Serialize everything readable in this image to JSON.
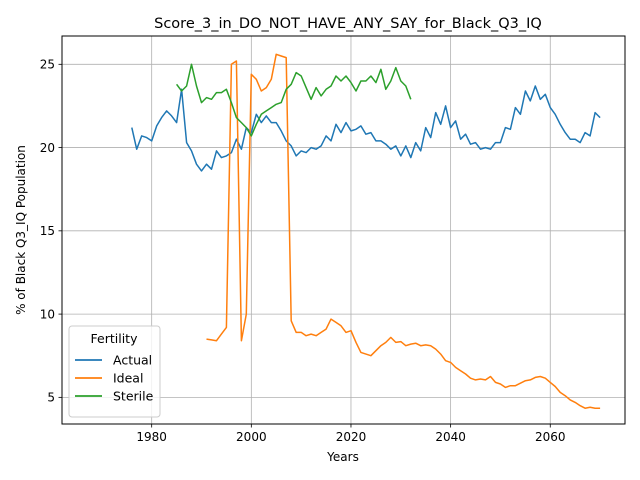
{
  "chart_data": {
    "type": "line",
    "title": "Score_3_in_DO_NOT_HAVE_ANY_SAY_for_Black_Q3_IQ",
    "xlabel": "Years",
    "ylabel": "% of Black Q3_IQ Population",
    "xlim": [
      1962,
      2075
    ],
    "ylim": [
      3.4,
      26.7
    ],
    "xticks": [
      1980,
      2000,
      2020,
      2040,
      2060
    ],
    "yticks": [
      5,
      10,
      15,
      20,
      25
    ],
    "grid": true,
    "legend": {
      "title": "Fertility",
      "placement": "lower-left"
    },
    "series": [
      {
        "name": "Actual",
        "color": "#1f77b4",
        "x": [
          1976,
          1977,
          1978,
          1979,
          1980,
          1981,
          1982,
          1983,
          1984,
          1985,
          1986,
          1987,
          1988,
          1989,
          1990,
          1991,
          1992,
          1993,
          1994,
          1995,
          1996,
          1997,
          1998,
          1999,
          2000,
          2001,
          2002,
          2003,
          2004,
          2005,
          2006,
          2007,
          2008,
          2009,
          2010,
          2011,
          2012,
          2013,
          2014,
          2015,
          2016,
          2017,
          2018,
          2019,
          2020,
          2021,
          2022,
          2023,
          2024,
          2025,
          2026,
          2027,
          2028,
          2029,
          2030,
          2031,
          2032,
          2033,
          2034,
          2035,
          2036,
          2037,
          2038,
          2039,
          2040,
          2041,
          2042,
          2043,
          2044,
          2045,
          2046,
          2047,
          2048,
          2049,
          2050,
          2051,
          2052,
          2053,
          2054,
          2055,
          2056,
          2057,
          2058,
          2059,
          2060,
          2061,
          2062,
          2063,
          2064,
          2065,
          2066,
          2067,
          2068,
          2069,
          2070
        ],
        "y": [
          21.2,
          19.9,
          20.7,
          20.6,
          20.4,
          21.3,
          21.8,
          22.2,
          21.9,
          21.5,
          23.5,
          20.3,
          19.8,
          19.0,
          18.6,
          19.0,
          18.7,
          19.8,
          19.4,
          19.5,
          19.7,
          20.5,
          19.9,
          21.2,
          20.9,
          22.0,
          21.5,
          21.9,
          21.5,
          21.5,
          21.0,
          20.4,
          20.1,
          19.5,
          19.8,
          19.7,
          20.0,
          19.9,
          20.1,
          20.7,
          20.4,
          21.4,
          20.9,
          21.5,
          21.0,
          21.1,
          21.3,
          20.8,
          20.9,
          20.4,
          20.4,
          20.2,
          19.9,
          20.1,
          19.5,
          20.1,
          19.4,
          20.3,
          19.8,
          21.2,
          20.6,
          22.1,
          21.4,
          22.5,
          21.2,
          21.6,
          20.5,
          20.8,
          20.2,
          20.3,
          19.9,
          20.0,
          19.9,
          20.3,
          20.3,
          21.2,
          21.1,
          22.4,
          22.0,
          23.4,
          22.8,
          23.7,
          22.9,
          23.2,
          22.4,
          22.0,
          21.4,
          20.9,
          20.5,
          20.5,
          20.3,
          20.9,
          20.7,
          22.1,
          21.8
        ]
      },
      {
        "name": "Ideal",
        "color": "#ff7f0e",
        "x": [
          1991,
          1992,
          1993,
          1994,
          1995,
          1996,
          1997,
          1998,
          1999,
          2000,
          2001,
          2002,
          2003,
          2004,
          2005,
          2006,
          2007,
          2008,
          2009,
          2010,
          2011,
          2012,
          2013,
          2014,
          2015,
          2016,
          2017,
          2018,
          2019,
          2020,
          2021,
          2022,
          2023,
          2024,
          2025,
          2026,
          2027,
          2028,
          2029,
          2030,
          2031,
          2032,
          2033,
          2034,
          2035,
          2036,
          2037,
          2038,
          2039,
          2040,
          2041,
          2042,
          2043,
          2044,
          2045,
          2046,
          2047,
          2048,
          2049,
          2050,
          2051,
          2052,
          2053,
          2054,
          2055,
          2056,
          2057,
          2058,
          2059,
          2060,
          2061,
          2062,
          2063,
          2064,
          2065,
          2066,
          2067,
          2068,
          2069,
          2070
        ],
        "y": [
          8.5,
          8.45,
          8.4,
          8.8,
          9.2,
          25.0,
          25.2,
          8.4,
          10.0,
          24.4,
          24.1,
          23.4,
          23.6,
          24.1,
          25.6,
          25.5,
          25.4,
          9.6,
          8.9,
          8.9,
          8.7,
          8.8,
          8.7,
          8.9,
          9.1,
          9.7,
          9.5,
          9.3,
          8.9,
          9.0,
          8.3,
          7.7,
          7.6,
          7.5,
          7.8,
          8.1,
          8.3,
          8.6,
          8.3,
          8.35,
          8.1,
          8.2,
          8.25,
          8.1,
          8.15,
          8.1,
          7.9,
          7.6,
          7.2,
          7.1,
          6.8,
          6.6,
          6.4,
          6.15,
          6.05,
          6.1,
          6.05,
          6.25,
          5.9,
          5.8,
          5.6,
          5.7,
          5.7,
          5.85,
          6.0,
          6.05,
          6.2,
          6.25,
          6.15,
          5.9,
          5.65,
          5.3,
          5.1,
          4.85,
          4.7,
          4.5,
          4.35,
          4.4,
          4.35,
          4.35
        ]
      },
      {
        "name": "Sterile",
        "color": "#2ca02c",
        "x": [
          1985,
          1986,
          1987,
          1988,
          1989,
          1990,
          1991,
          1992,
          1993,
          1994,
          1995,
          1996,
          1997,
          1998,
          1999,
          2000,
          2001,
          2002,
          2003,
          2004,
          2005,
          2006,
          2007,
          2008,
          2009,
          2010,
          2011,
          2012,
          2013,
          2014,
          2015,
          2016,
          2017,
          2018,
          2019,
          2020,
          2021,
          2022,
          2023,
          2024,
          2025,
          2026,
          2027,
          2028,
          2029,
          2030,
          2031,
          2032
        ],
        "y": [
          23.8,
          23.4,
          23.7,
          25.0,
          23.7,
          22.7,
          23.0,
          22.9,
          23.3,
          23.3,
          23.5,
          22.7,
          21.8,
          21.5,
          21.2,
          20.7,
          21.4,
          22.0,
          22.2,
          22.4,
          22.6,
          22.7,
          23.5,
          23.8,
          24.5,
          24.3,
          23.6,
          22.9,
          23.6,
          23.1,
          23.5,
          23.7,
          24.3,
          24.0,
          24.3,
          23.9,
          23.4,
          24.0,
          24.0,
          24.3,
          23.9,
          24.7,
          23.5,
          24.0,
          24.8,
          24.0,
          23.7,
          22.9
        ]
      }
    ]
  }
}
